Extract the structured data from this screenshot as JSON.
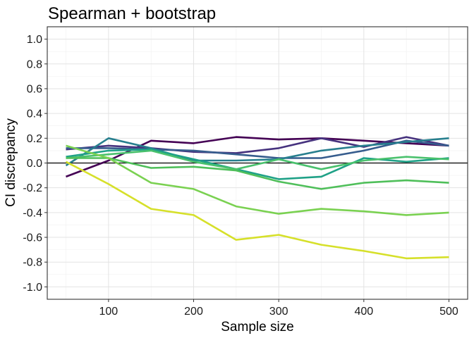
{
  "chart_data": {
    "type": "line",
    "title": "Spearman + bootstrap",
    "xlabel": "Sample size",
    "ylabel": "CI discrepancy",
    "xlim": [
      28,
      522
    ],
    "ylim": [
      -1.1,
      1.1
    ],
    "xticks": [
      100,
      200,
      300,
      400,
      500
    ],
    "xtick_labels": [
      "100",
      "200",
      "300",
      "400",
      "500"
    ],
    "yticks": [
      -1.0,
      -0.8,
      -0.6,
      -0.4,
      -0.2,
      0.0,
      0.2,
      0.4,
      0.6,
      0.8,
      1.0
    ],
    "ytick_labels": [
      "-1.0",
      "-0.8",
      "-0.6",
      "-0.4",
      "-0.2",
      "0.0",
      "0.2",
      "0.4",
      "0.6",
      "0.8",
      "1.0"
    ],
    "grid": true,
    "hline_y": 0,
    "x": [
      50,
      100,
      150,
      200,
      250,
      300,
      350,
      400,
      450,
      500
    ],
    "series": [
      {
        "color": "#440154",
        "values": [
          -0.11,
          0.02,
          0.18,
          0.16,
          0.21,
          0.19,
          0.2,
          0.18,
          0.16,
          0.14
        ]
      },
      {
        "color": "#46327E",
        "values": [
          0.11,
          0.14,
          0.12,
          0.09,
          0.08,
          0.12,
          0.2,
          0.13,
          0.21,
          0.14
        ]
      },
      {
        "color": "#365C8D",
        "values": [
          0.12,
          0.12,
          0.11,
          0.1,
          0.07,
          0.04,
          0.04,
          0.1,
          0.18,
          0.14
        ]
      },
      {
        "color": "#277F8E",
        "values": [
          -0.02,
          0.2,
          0.12,
          0.02,
          0.02,
          0.03,
          0.1,
          0.14,
          0.17,
          0.2
        ]
      },
      {
        "color": "#1FA187",
        "values": [
          0.05,
          0.1,
          0.11,
          0.03,
          -0.05,
          -0.13,
          -0.11,
          0.04,
          0.01,
          0.04
        ]
      },
      {
        "color": "#4AC16D",
        "values": [
          0.04,
          0.07,
          0.1,
          0.01,
          -0.05,
          0.03,
          -0.05,
          0.02,
          0.05,
          0.03
        ]
      },
      {
        "color": "#4FBF5A",
        "values": [
          0.04,
          0.04,
          -0.04,
          -0.03,
          -0.06,
          -0.15,
          -0.21,
          -0.16,
          -0.14,
          -0.16
        ]
      },
      {
        "color": "#7AD151",
        "values": [
          0.14,
          0.04,
          -0.16,
          -0.21,
          -0.35,
          -0.41,
          -0.37,
          -0.39,
          -0.42,
          -0.4
        ]
      },
      {
        "color": "#D6E02A",
        "values": [
          0.01,
          -0.17,
          -0.37,
          -0.42,
          -0.62,
          -0.58,
          -0.66,
          -0.71,
          -0.77,
          -0.76
        ]
      }
    ]
  }
}
